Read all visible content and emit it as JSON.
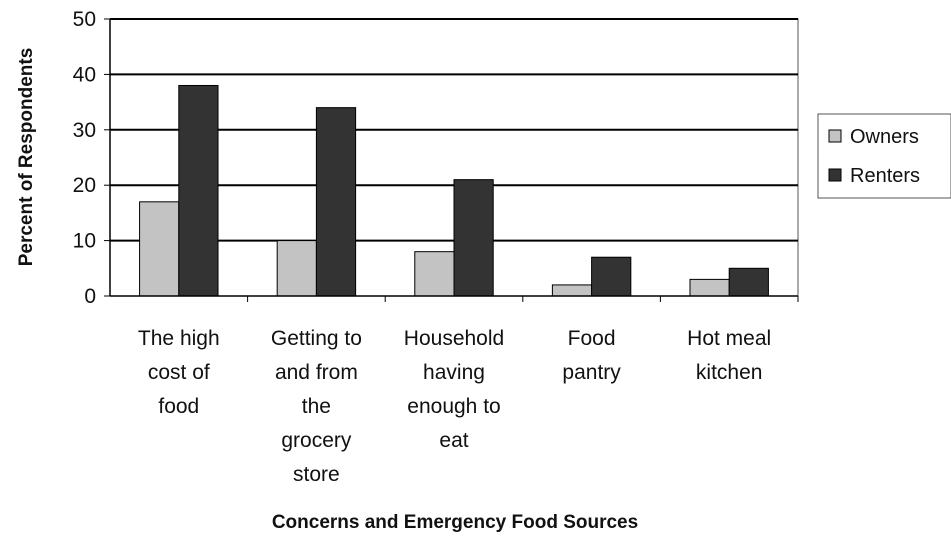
{
  "chart_data": {
    "type": "bar",
    "title": "",
    "xlabel": "Concerns and Emergency Food Sources",
    "ylabel": "Percent of Respondents",
    "ylim": [
      0,
      50
    ],
    "yticks": [
      0,
      10,
      20,
      30,
      40,
      50
    ],
    "grid": true,
    "legend_position": "right",
    "categories": [
      [
        "The high",
        "cost of",
        "food"
      ],
      [
        "Getting to",
        "and from",
        "the",
        "grocery",
        "store"
      ],
      [
        "Household",
        "having",
        "enough to",
        "eat"
      ],
      [
        "Food",
        "pantry"
      ],
      [
        "Hot meal",
        "kitchen"
      ]
    ],
    "series": [
      {
        "name": "Owners",
        "values": [
          17,
          10,
          8,
          2,
          3
        ],
        "color": "#c3c3c3"
      },
      {
        "name": "Renters",
        "values": [
          38,
          34,
          21,
          7,
          5
        ],
        "color": "#333333"
      }
    ]
  }
}
